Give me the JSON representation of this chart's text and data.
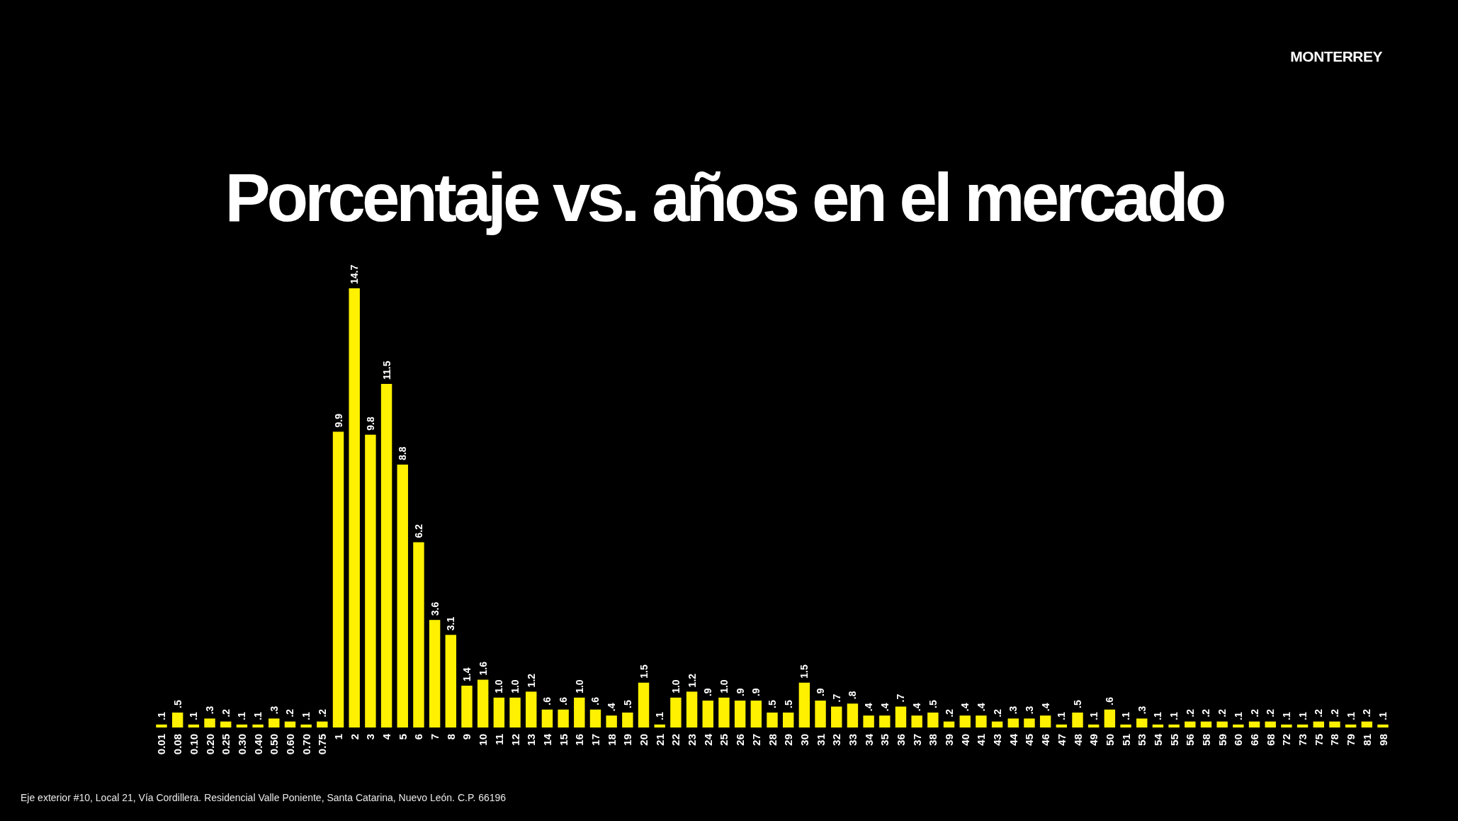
{
  "chart_data": {
    "type": "bar",
    "title": "Porcentaje vs. años en el mercado",
    "categories": [
      "0.01",
      "0.08",
      "0.10",
      "0.20",
      "0.25",
      "0.30",
      "0.40",
      "0.50",
      "0.60",
      "0.70",
      "0.75",
      "1",
      "2",
      "3",
      "4",
      "5",
      "6",
      "7",
      "8",
      "9",
      "10",
      "11",
      "12",
      "13",
      "14",
      "15",
      "16",
      "17",
      "18",
      "19",
      "20",
      "21",
      "22",
      "23",
      "24",
      "25",
      "26",
      "27",
      "28",
      "29",
      "30",
      "31",
      "32",
      "33",
      "34",
      "35",
      "36",
      "37",
      "38",
      "39",
      "40",
      "41",
      "43",
      "44",
      "45",
      "46",
      "47",
      "48",
      "49",
      "50",
      "51",
      "53",
      "54",
      "55",
      "56",
      "58",
      "59",
      "60",
      "66",
      "68",
      "72",
      "73",
      "75",
      "78",
      "79",
      "81",
      "98"
    ],
    "values": [
      0.1,
      0.5,
      0.1,
      0.3,
      0.2,
      0.1,
      0.1,
      0.3,
      0.2,
      0.1,
      0.2,
      9.9,
      14.7,
      9.8,
      11.5,
      8.8,
      6.2,
      3.6,
      3.1,
      1.4,
      1.6,
      1.0,
      1.0,
      1.2,
      0.6,
      0.6,
      1.0,
      0.6,
      0.4,
      0.5,
      1.5,
      0.1,
      1.0,
      1.2,
      0.9,
      1.0,
      0.9,
      0.9,
      0.5,
      0.5,
      1.5,
      0.9,
      0.7,
      0.8,
      0.4,
      0.4,
      0.7,
      0.4,
      0.5,
      0.2,
      0.4,
      0.4,
      0.2,
      0.3,
      0.3,
      0.4,
      0.1,
      0.5,
      0.1,
      0.6,
      0.1,
      0.3,
      0.1,
      0.1,
      0.2,
      0.2,
      0.2,
      0.1,
      0.2,
      0.2,
      0.1,
      0.1,
      0.2,
      0.2,
      0.1,
      0.2,
      0.1
    ],
    "value_labels": [
      ".1",
      ".5",
      ".1",
      ".3",
      ".2",
      ".1",
      ".1",
      ".3",
      ".2",
      ".1",
      ".2",
      "9.9",
      "14.7",
      "9.8",
      "11.5",
      "8.8",
      "6.2",
      "3.6",
      "3.1",
      "1.4",
      "1.6",
      "1.0",
      "1.0",
      "1.2",
      ".6",
      ".6",
      "1.0",
      ".6",
      ".4",
      ".5",
      "1.5",
      ".1",
      "1.0",
      "1.2",
      ".9",
      "1.0",
      ".9",
      ".9",
      ".5",
      ".5",
      "1.5",
      ".9",
      ".7",
      ".8",
      ".4",
      ".4",
      ".7",
      ".4",
      ".5",
      ".2",
      ".4",
      ".4",
      ".2",
      ".3",
      ".3",
      ".4",
      ".1",
      ".5",
      ".1",
      ".6",
      ".1",
      ".3",
      ".1",
      ".1",
      ".2",
      ".2",
      ".2",
      ".1",
      ".2",
      ".2",
      ".1",
      ".1",
      ".2",
      ".2",
      ".1",
      ".2",
      ".1"
    ],
    "color": "#fff100",
    "annotations": [
      "MONTERREY",
      "Eje exterior #10, Local 21, Vía Cordillera. Residencial Valle Poniente, Santa Catarina, Nuevo León. C.P. 66196"
    ]
  }
}
